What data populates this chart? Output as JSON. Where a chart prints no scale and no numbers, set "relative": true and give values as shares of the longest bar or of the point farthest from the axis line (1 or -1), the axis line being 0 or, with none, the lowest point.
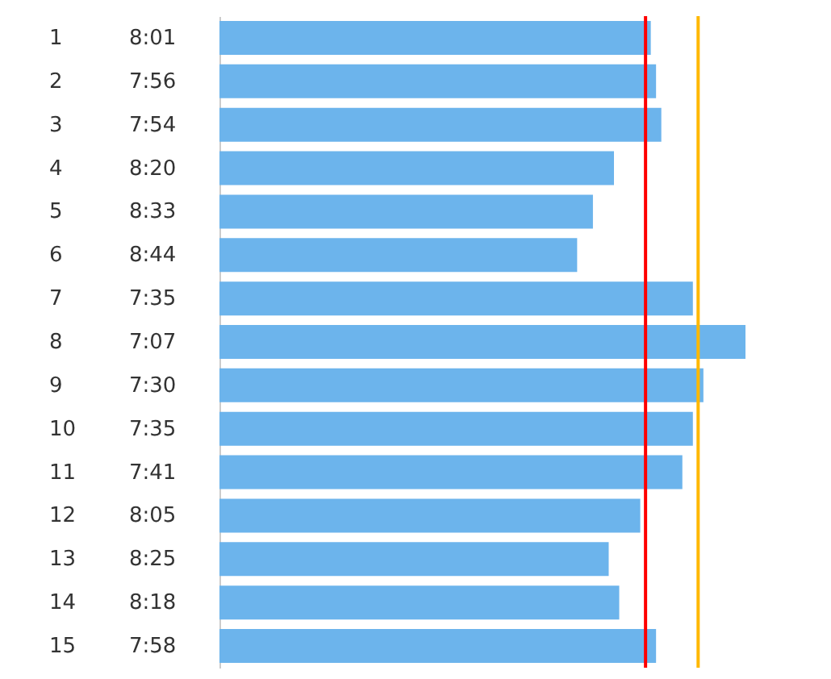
{
  "chart_data": {
    "type": "bar",
    "orientation": "horizontal",
    "relative": true,
    "categories": [
      "1",
      "2",
      "3",
      "4",
      "5",
      "6",
      "7",
      "8",
      "9",
      "10",
      "11",
      "12",
      "13",
      "14",
      "15"
    ],
    "values": [
      0.82,
      0.83,
      0.84,
      0.75,
      0.71,
      0.68,
      0.9,
      1,
      0.92,
      0.9,
      0.88,
      0.8,
      0.74,
      0.76,
      0.83
    ],
    "annotations": [
      "8:01",
      "7:56",
      "7:54",
      "8:20",
      "8:33",
      "8:44",
      "7:35",
      "7:07",
      "7:30",
      "7:35",
      "7:41",
      "8:05",
      "8:25",
      "8:18",
      "7:58"
    ],
    "color": "#6cb4ec",
    "ref_lines": [
      {
        "axis": "x",
        "value": 0.81,
        "color": "#ff0000"
      },
      {
        "axis": "x",
        "value": 0.91,
        "color": "#ffb800"
      }
    ]
  }
}
